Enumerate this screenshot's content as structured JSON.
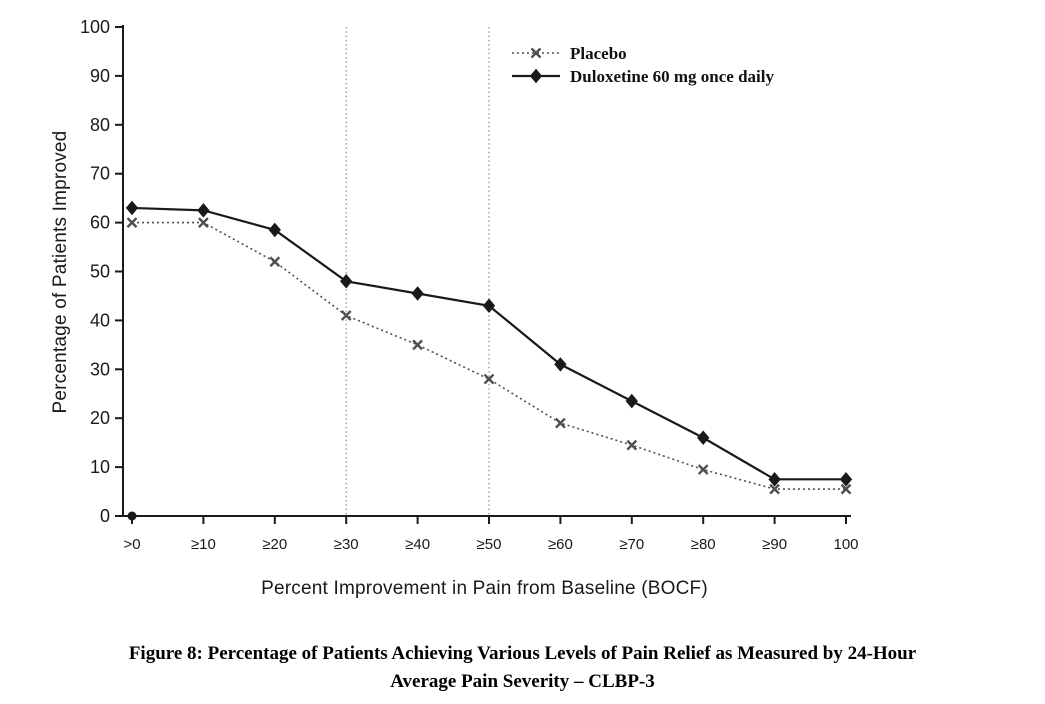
{
  "figure": {
    "caption_line1": "Figure 8: Percentage of Patients Achieving Various Levels of Pain Relief as Measured by 24-Hour",
    "caption_line2": "Average Pain Severity – CLBP-3"
  },
  "chart_data": {
    "type": "line",
    "title": "",
    "xlabel": "Percent Improvement in Pain from Baseline (BOCF)",
    "ylabel": "Percentage of Patients Improved",
    "categories": [
      ">0",
      "≥10",
      "≥20",
      "≥30",
      "≥40",
      "≥50",
      "≥60",
      "≥70",
      "≥80",
      "≥90",
      "100"
    ],
    "ylim": [
      0,
      100
    ],
    "ytick_step": 10,
    "grid": "off",
    "legend_position": "top-center-inside",
    "reference_lines_at": [
      "≥30",
      "≥50"
    ],
    "series": [
      {
        "name": "Placebo",
        "marker": "x",
        "line_style": "dotted",
        "color": "#4f4f4f",
        "values": [
          60,
          60,
          52,
          41,
          35,
          28,
          19,
          14.5,
          9.5,
          5.5,
          5.5
        ]
      },
      {
        "name": "Duloxetine 60 mg once daily",
        "marker": "diamond",
        "line_style": "solid",
        "color": "#1a1a1a",
        "values": [
          63,
          62.5,
          58.5,
          48,
          45.5,
          43,
          31,
          23.5,
          16,
          7.5,
          7.5
        ]
      }
    ]
  }
}
